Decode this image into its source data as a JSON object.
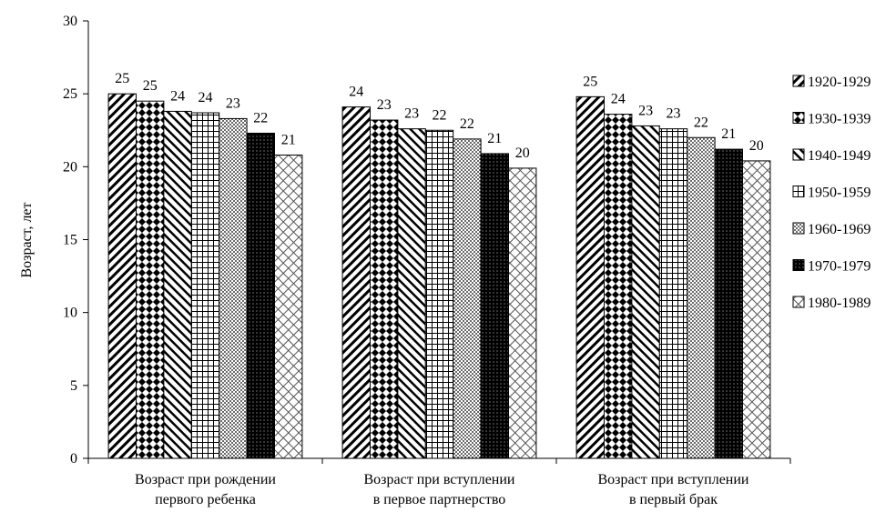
{
  "chart_data": {
    "type": "bar",
    "title": "",
    "xlabel": "",
    "ylabel": "Возраст, лет",
    "ylim": [
      0,
      30
    ],
    "yticks": [
      0,
      5,
      10,
      15,
      20,
      25,
      30
    ],
    "grid": false,
    "legend_position": "right",
    "categories": [
      [
        "Возраст  при рождении",
        "первого ребенка"
      ],
      [
        "Возраст при вступлении",
        "в первое партнерство"
      ],
      [
        "Возраст при вступлении",
        "в первый брак"
      ]
    ],
    "series": [
      {
        "name": "1920-1929",
        "pattern": "diag-right",
        "values": [
          25.0,
          24.1,
          24.8
        ],
        "labels": [
          "25",
          "24",
          "25"
        ]
      },
      {
        "name": "1930-1939",
        "pattern": "diamonds",
        "values": [
          24.5,
          23.2,
          23.6
        ],
        "labels": [
          "25",
          "23",
          "24"
        ]
      },
      {
        "name": "1940-1949",
        "pattern": "diag-left",
        "values": [
          23.8,
          22.6,
          22.8
        ],
        "labels": [
          "24",
          "23",
          "23"
        ]
      },
      {
        "name": "1950-1959",
        "pattern": "grid",
        "values": [
          23.7,
          22.5,
          22.6
        ],
        "labels": [
          "24",
          "22",
          "23"
        ]
      },
      {
        "name": "1960-1969",
        "pattern": "dots",
        "values": [
          23.3,
          21.9,
          22.0
        ],
        "labels": [
          "23",
          "22",
          "22"
        ]
      },
      {
        "name": "1970-1979",
        "pattern": "dark-dots",
        "values": [
          22.3,
          20.9,
          21.2
        ],
        "labels": [
          "22",
          "21",
          "21"
        ]
      },
      {
        "name": "1980-1989",
        "pattern": "light-diamond",
        "values": [
          20.8,
          19.9,
          20.4
        ],
        "labels": [
          "21",
          "20",
          "20"
        ]
      }
    ]
  }
}
